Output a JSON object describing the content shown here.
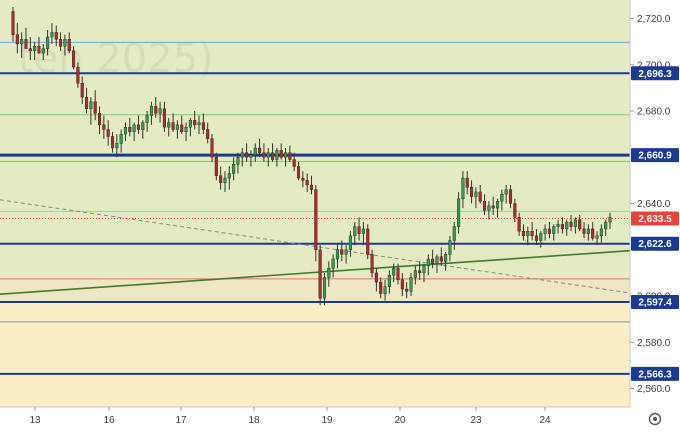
{
  "chart_data": {
    "type": "candlestick",
    "watermark": "ten 2025)",
    "ylim": [
      2552,
      2728
    ],
    "xlim": [
      0,
      630
    ],
    "y_ticks": [
      {
        "value": 2720,
        "label": "2,720.0"
      },
      {
        "value": 2700,
        "label": "2,700.0"
      },
      {
        "value": 2680,
        "label": "2,680.0"
      },
      {
        "value": 2640,
        "label": "2,640.0"
      },
      {
        "value": 2600,
        "label": "2,600.0"
      },
      {
        "value": 2580,
        "label": "2,580.0"
      },
      {
        "value": 2560,
        "label": "2,560.0"
      }
    ],
    "x_ticks": [
      {
        "x": 35,
        "label": "13"
      },
      {
        "x": 109,
        "label": "16"
      },
      {
        "x": 181,
        "label": "17"
      },
      {
        "x": 254,
        "label": "18"
      },
      {
        "x": 327,
        "label": "19"
      },
      {
        "x": 400,
        "label": "20"
      },
      {
        "x": 476,
        "label": "23"
      },
      {
        "x": 545,
        "label": "24"
      }
    ],
    "zones": [
      {
        "from": 2610,
        "to": 2728,
        "color": "#e4ebc3"
      },
      {
        "from": 2597,
        "to": 2610,
        "color": "#efe6c4"
      },
      {
        "from": 2552,
        "to": 2597,
        "color": "#fbeec6"
      }
    ],
    "thin_levels": [
      {
        "value": 2709.7,
        "color": "#6fa8d2"
      },
      {
        "value": 2678.4,
        "color": "#6fcf6f"
      },
      {
        "value": 2658.2,
        "color": "#6fcf6f"
      },
      {
        "value": 2636.6,
        "color": "#9fd86a"
      },
      {
        "value": 2607.4,
        "color": "#d97a6a"
      },
      {
        "value": 2588.8,
        "color": "#7a8fb8"
      }
    ],
    "levels": [
      {
        "value": 2696.3,
        "label": "2,696.3",
        "width": 2
      },
      {
        "value": 2660.9,
        "label": "2,660.9",
        "width": 3
      },
      {
        "value": 2622.6,
        "label": "2,622.6",
        "width": 2
      },
      {
        "value": 2597.4,
        "label": "2,597.4",
        "width": 2
      },
      {
        "value": 2566.3,
        "label": "2,566.3",
        "width": 2
      }
    ],
    "level_color": "#1a3a93",
    "current_price": {
      "value": 2633.5,
      "label": "2,633.5",
      "color": "#e8423a"
    },
    "trendlines": [
      {
        "x1": 0,
        "y1": 2600.8,
        "x2": 630,
        "y2": 2619.6,
        "color": "#3f7d2e",
        "style": "solid"
      },
      {
        "x1": 0,
        "y1": 2641.6,
        "x2": 630,
        "y2": 2601.3,
        "color": "#8a8a8a",
        "style": "dashed"
      }
    ],
    "candle_colors": {
      "up": "#2e9e4f",
      "down": "#b3282d",
      "wick": "#333333"
    },
    "series": [
      {
        "name": "",
        "values": [
          [
            2723,
            2725,
            2710,
            2713
          ],
          [
            2713,
            2718,
            2705,
            2709
          ],
          [
            2709,
            2714,
            2703,
            2711
          ],
          [
            2711,
            2716,
            2708,
            2707
          ],
          [
            2707,
            2712,
            2702,
            2706
          ],
          [
            2706,
            2710,
            2702,
            2708
          ],
          [
            2708,
            2712,
            2705,
            2705
          ],
          [
            2705,
            2709,
            2702,
            2707
          ],
          [
            2707,
            2715,
            2704,
            2712
          ],
          [
            2712,
            2718,
            2709,
            2714
          ],
          [
            2714,
            2717,
            2708,
            2711
          ],
          [
            2711,
            2714,
            2706,
            2708
          ],
          [
            2708,
            2713,
            2704,
            2711
          ],
          [
            2711,
            2714,
            2705,
            2706
          ],
          [
            2706,
            2708,
            2698,
            2699
          ],
          [
            2699,
            2701,
            2690,
            2692
          ],
          [
            2692,
            2695,
            2683,
            2686
          ],
          [
            2686,
            2690,
            2679,
            2681
          ],
          [
            2681,
            2686,
            2674,
            2684
          ],
          [
            2684,
            2689,
            2676,
            2679
          ],
          [
            2679,
            2682,
            2670,
            2674
          ],
          [
            2674,
            2678,
            2668,
            2672
          ],
          [
            2672,
            2676,
            2665,
            2669
          ],
          [
            2669,
            2671,
            2662,
            2664
          ],
          [
            2664,
            2670,
            2660,
            2666
          ],
          [
            2666,
            2672,
            2662,
            2670
          ],
          [
            2670,
            2675,
            2667,
            2673
          ],
          [
            2673,
            2677,
            2669,
            2671
          ],
          [
            2671,
            2675,
            2667,
            2674
          ],
          [
            2674,
            2678,
            2670,
            2672
          ],
          [
            2672,
            2676,
            2668,
            2675
          ],
          [
            2675,
            2680,
            2671,
            2678
          ],
          [
            2678,
            2684,
            2674,
            2682
          ],
          [
            2682,
            2686,
            2677,
            2679
          ],
          [
            2679,
            2684,
            2675,
            2681
          ],
          [
            2681,
            2684,
            2671,
            2673
          ],
          [
            2673,
            2677,
            2669,
            2675
          ],
          [
            2675,
            2679,
            2671,
            2672
          ],
          [
            2672,
            2676,
            2668,
            2674
          ],
          [
            2674,
            2678,
            2670,
            2671
          ],
          [
            2671,
            2675,
            2667,
            2673
          ],
          [
            2673,
            2677,
            2669,
            2676
          ],
          [
            2676,
            2680,
            2672,
            2674
          ],
          [
            2674,
            2678,
            2670,
            2675
          ],
          [
            2675,
            2679,
            2670,
            2672
          ],
          [
            2672,
            2675,
            2666,
            2668
          ],
          [
            2668,
            2670,
            2658,
            2660
          ],
          [
            2660,
            2662,
            2650,
            2652
          ],
          [
            2652,
            2656,
            2646,
            2649
          ],
          [
            2649,
            2654,
            2645,
            2651
          ],
          [
            2651,
            2656,
            2646,
            2653
          ],
          [
            2653,
            2660,
            2650,
            2657
          ],
          [
            2657,
            2662,
            2653,
            2660
          ],
          [
            2660,
            2664,
            2656,
            2662
          ],
          [
            2662,
            2666,
            2658,
            2660
          ],
          [
            2660,
            2663,
            2656,
            2661
          ],
          [
            2661,
            2666,
            2658,
            2664
          ],
          [
            2664,
            2668,
            2660,
            2662
          ],
          [
            2662,
            2666,
            2658,
            2660
          ],
          [
            2660,
            2664,
            2656,
            2662
          ],
          [
            2662,
            2666,
            2658,
            2659
          ],
          [
            2659,
            2664,
            2656,
            2663
          ],
          [
            2663,
            2666,
            2659,
            2660
          ],
          [
            2660,
            2664,
            2656,
            2662
          ],
          [
            2662,
            2665,
            2658,
            2659
          ],
          [
            2659,
            2662,
            2654,
            2656
          ],
          [
            2656,
            2658,
            2650,
            2651
          ],
          [
            2651,
            2654,
            2647,
            2650
          ],
          [
            2650,
            2653,
            2645,
            2648
          ],
          [
            2648,
            2652,
            2644,
            2646
          ],
          [
            2646,
            2648,
            2615,
            2620
          ],
          [
            2620,
            2622,
            2596,
            2599
          ],
          [
            2599,
            2610,
            2596,
            2608
          ],
          [
            2608,
            2615,
            2604,
            2612
          ],
          [
            2612,
            2618,
            2608,
            2616
          ],
          [
            2616,
            2623,
            2612,
            2620
          ],
          [
            2620,
            2624,
            2615,
            2618
          ],
          [
            2618,
            2622,
            2614,
            2620
          ],
          [
            2620,
            2628,
            2617,
            2626
          ],
          [
            2626,
            2632,
            2622,
            2630
          ],
          [
            2630,
            2634,
            2624,
            2627
          ],
          [
            2627,
            2632,
            2622,
            2629
          ],
          [
            2629,
            2631,
            2616,
            2618
          ],
          [
            2618,
            2620,
            2608,
            2610
          ],
          [
            2610,
            2612,
            2602,
            2606
          ],
          [
            2606,
            2608,
            2599,
            2601
          ],
          [
            2601,
            2607,
            2598,
            2604
          ],
          [
            2604,
            2611,
            2601,
            2609
          ],
          [
            2609,
            2614,
            2606,
            2612
          ],
          [
            2612,
            2614,
            2605,
            2607
          ],
          [
            2607,
            2610,
            2600,
            2603
          ],
          [
            2603,
            2606,
            2599,
            2602
          ],
          [
            2602,
            2610,
            2600,
            2608
          ],
          [
            2608,
            2613,
            2605,
            2611
          ],
          [
            2611,
            2615,
            2607,
            2610
          ],
          [
            2610,
            2614,
            2606,
            2613
          ],
          [
            2613,
            2618,
            2609,
            2616
          ],
          [
            2616,
            2620,
            2612,
            2614
          ],
          [
            2614,
            2618,
            2610,
            2617
          ],
          [
            2617,
            2621,
            2613,
            2615
          ],
          [
            2615,
            2619,
            2611,
            2618
          ],
          [
            2618,
            2626,
            2615,
            2624
          ],
          [
            2624,
            2632,
            2620,
            2630
          ],
          [
            2630,
            2645,
            2627,
            2642
          ],
          [
            2642,
            2654,
            2638,
            2651
          ],
          [
            2651,
            2654,
            2644,
            2647
          ],
          [
            2647,
            2650,
            2640,
            2643
          ],
          [
            2643,
            2647,
            2638,
            2645
          ],
          [
            2645,
            2648,
            2640,
            2641
          ],
          [
            2641,
            2644,
            2635,
            2637
          ],
          [
            2637,
            2641,
            2633,
            2639
          ],
          [
            2639,
            2643,
            2635,
            2638
          ],
          [
            2638,
            2642,
            2634,
            2641
          ],
          [
            2641,
            2646,
            2637,
            2644
          ],
          [
            2644,
            2648,
            2640,
            2646
          ],
          [
            2646,
            2648,
            2638,
            2640
          ],
          [
            2640,
            2642,
            2632,
            2634
          ],
          [
            2634,
            2636,
            2626,
            2628
          ],
          [
            2628,
            2631,
            2624,
            2626
          ],
          [
            2626,
            2630,
            2622,
            2628
          ],
          [
            2628,
            2632,
            2624,
            2626
          ],
          [
            2626,
            2629,
            2622,
            2624
          ],
          [
            2624,
            2628,
            2621,
            2627
          ],
          [
            2627,
            2631,
            2624,
            2629
          ],
          [
            2629,
            2632,
            2625,
            2627
          ],
          [
            2627,
            2631,
            2624,
            2630
          ],
          [
            2630,
            2633,
            2627,
            2631
          ],
          [
            2631,
            2634,
            2627,
            2629
          ],
          [
            2629,
            2633,
            2626,
            2632
          ],
          [
            2632,
            2635,
            2628,
            2630
          ],
          [
            2630,
            2634,
            2627,
            2633
          ],
          [
            2633,
            2635,
            2628,
            2629
          ],
          [
            2629,
            2632,
            2625,
            2627
          ],
          [
            2627,
            2631,
            2624,
            2629
          ],
          [
            2629,
            2632,
            2624,
            2625
          ],
          [
            2625,
            2628,
            2622,
            2626
          ],
          [
            2626,
            2631,
            2623,
            2629
          ],
          [
            2629,
            2633,
            2626,
            2632
          ],
          [
            2632,
            2636,
            2629,
            2634
          ]
        ]
      }
    ]
  }
}
